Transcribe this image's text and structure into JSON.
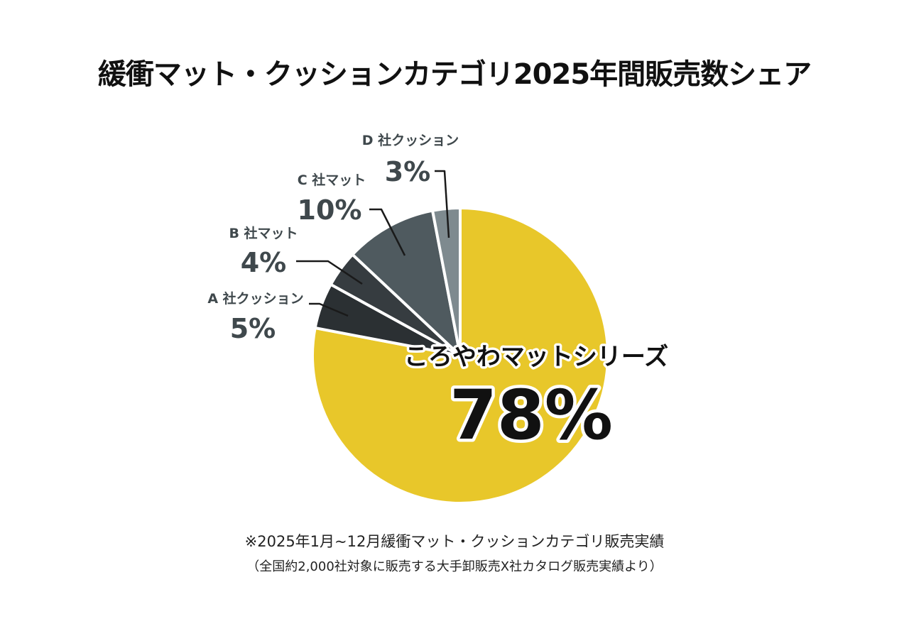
{
  "chart_data": {
    "type": "pie",
    "title": "緩衝マット・クッションカテゴリ2025年間販売数シェア",
    "start_angle_deg": 0,
    "direction": "clockwise",
    "slices": [
      {
        "id": "korayawa",
        "label": "ころやわマットシリーズ",
        "value": 78,
        "value_label": "78%",
        "color": "#e8c72a"
      },
      {
        "id": "a",
        "label": "A 社クッション",
        "value": 5,
        "value_label": "5%",
        "color": "#2b3033"
      },
      {
        "id": "b",
        "label": "B 社マット",
        "value": 4,
        "value_label": "4%",
        "color": "#363c40"
      },
      {
        "id": "c",
        "label": "C 社マット",
        "value": 10,
        "value_label": "10%",
        "color": "#4f5a5f"
      },
      {
        "id": "d",
        "label": "D 社クッション",
        "value": 3,
        "value_label": "3%",
        "color": "#7e8a8f"
      }
    ]
  },
  "footnotes": {
    "line1": "※2025年1月~12月緩衝マット・クッションカテゴリ販売実績",
    "line2": "（全国約2,000社対象に販売する大手卸販売X社カタログ販売実績より）"
  }
}
